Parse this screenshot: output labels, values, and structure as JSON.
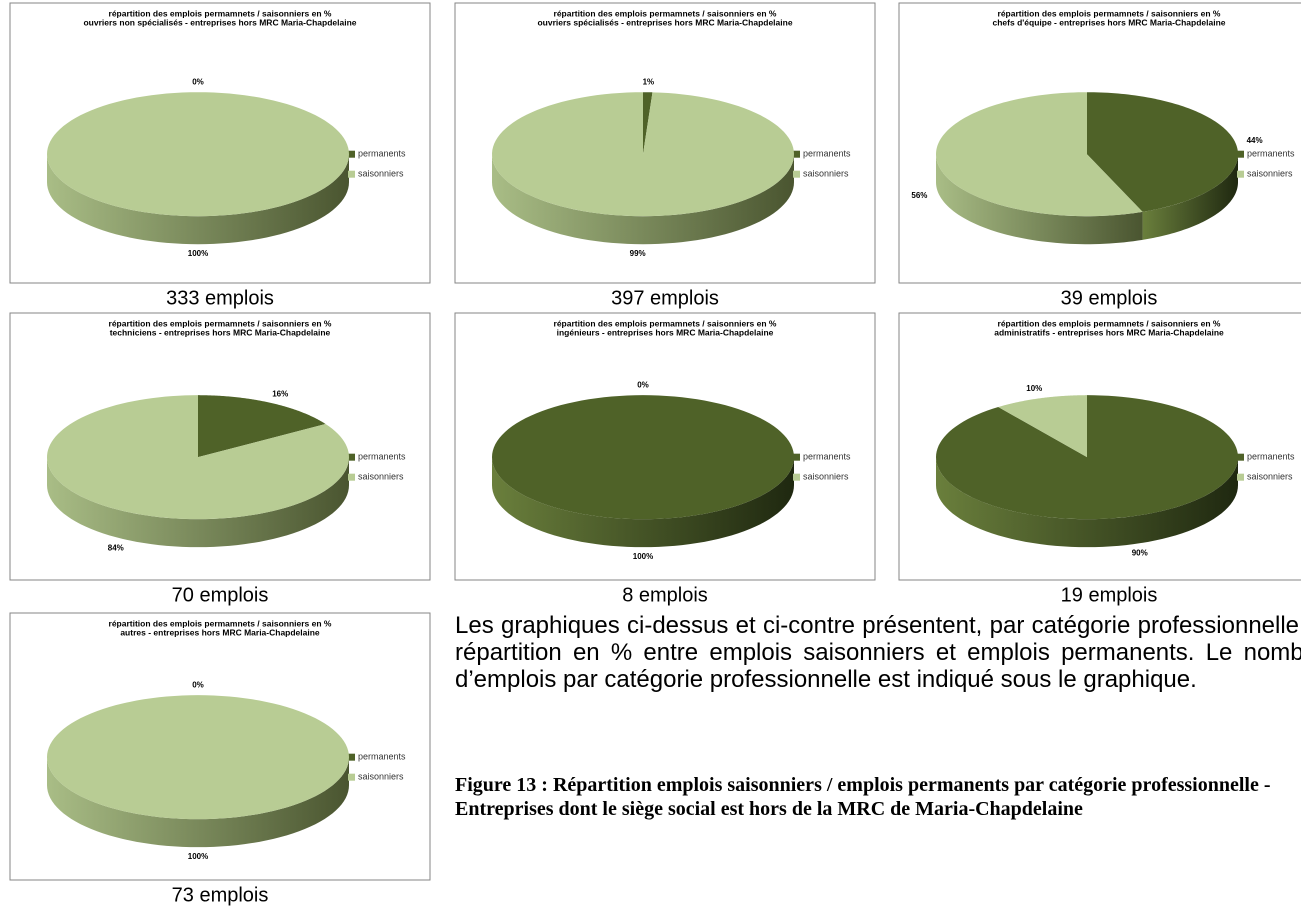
{
  "chart_data": [
    {
      "type": "pie",
      "title": "répartition des emplois permamnets / saisonniers en %",
      "subtitle": "ouvriers non spécialisés - entreprises hors MRC Maria-Chapdelaine",
      "categories": [
        "permanents",
        "saisonniers"
      ],
      "values": [
        0,
        100
      ],
      "value_labels": [
        "0%",
        "100%"
      ],
      "colors": [
        "#4f6228",
        "#b8cc94"
      ],
      "caption": "333 emplois"
    },
    {
      "type": "pie",
      "title": "répartition des emplois permamnets / saisonniers en %",
      "subtitle": "ouvriers spécialisés - entreprises hors MRC Maria-Chapdelaine",
      "categories": [
        "permanents",
        "saisonniers"
      ],
      "values": [
        1,
        99
      ],
      "value_labels": [
        "1%",
        "99%"
      ],
      "colors": [
        "#4f6228",
        "#b8cc94"
      ],
      "caption": "397 emplois"
    },
    {
      "type": "pie",
      "title": "répartition des emplois permamnets / saisonniers en %",
      "subtitle": "chefs d'équipe - entreprises hors MRC Maria-Chapdelaine",
      "categories": [
        "permanents",
        "saisonniers"
      ],
      "values": [
        44,
        56
      ],
      "value_labels": [
        "44%",
        "56%"
      ],
      "colors": [
        "#4f6228",
        "#b8cc94"
      ],
      "caption": "39 emplois"
    },
    {
      "type": "pie",
      "title": "répartition des emplois permamnets / saisonniers en %",
      "subtitle": "techniciens - entreprises hors MRC Maria-Chapdelaine",
      "categories": [
        "permanents",
        "saisonniers"
      ],
      "values": [
        16,
        84
      ],
      "value_labels": [
        "16%",
        "84%"
      ],
      "colors": [
        "#4f6228",
        "#b8cc94"
      ],
      "caption": "70 emplois"
    },
    {
      "type": "pie",
      "title": "répartition des emplois permamnets / saisonniers en %",
      "subtitle": "ingénieurs - entreprises hors MRC Maria-Chapdelaine",
      "categories": [
        "permanents",
        "saisonniers"
      ],
      "values": [
        100,
        0
      ],
      "value_labels": [
        "100%",
        "0%"
      ],
      "colors": [
        "#4f6228",
        "#b8cc94"
      ],
      "caption": "8 emplois"
    },
    {
      "type": "pie",
      "title": "répartition des emplois permamnets / saisonniers en %",
      "subtitle": "administratifs - entreprises hors MRC Maria-Chapdelaine",
      "categories": [
        "permanents",
        "saisonniers"
      ],
      "values": [
        90,
        10
      ],
      "value_labels": [
        "90%",
        "10%"
      ],
      "colors": [
        "#4f6228",
        "#b8cc94"
      ],
      "caption": "19 emplois"
    },
    {
      "type": "pie",
      "title": "répartition des emplois permamnets / saisonniers en %",
      "subtitle": "autres - entreprises hors MRC Maria-Chapdelaine",
      "categories": [
        "permanents",
        "saisonniers"
      ],
      "values": [
        0,
        100
      ],
      "value_labels": [
        "0%",
        "100%"
      ],
      "colors": [
        "#4f6228",
        "#b8cc94"
      ],
      "caption": "73 emplois"
    }
  ],
  "body_text": "Les graphiques ci-dessus et ci-contre présentent, par catégorie professionnelle la répartition en % entre emplois saisonniers et emplois permanents. Le nombre d’emplois par catégorie professionnelle est indiqué sous le graphique.",
  "figure_caption": "Figure 13 : Répartition emplois saisonniers / emplois permanents par catégorie professionnelle - Entreprises dont le siège social est hors de la MRC de Maria-Chapdelaine"
}
